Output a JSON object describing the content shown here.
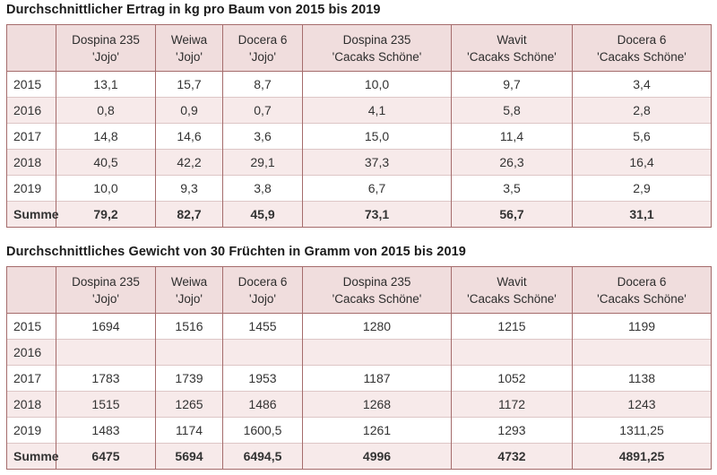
{
  "colors": {
    "header_bg": "#f0dddd",
    "stripe_bg": "#f7eaea",
    "border_strong": "#a56c6c",
    "border_light": "#ddc6c6",
    "title_text": "#1b1b1b",
    "cell_text": "#333333"
  },
  "tables": [
    {
      "title": "Durchschnittlicher Ertrag in kg pro Baum von 2015 bis 2019",
      "columns": [
        [
          "",
          ""
        ],
        [
          "Dospina 235",
          "'Jojo'"
        ],
        [
          "Weiwa",
          "'Jojo'"
        ],
        [
          "Docera 6",
          "'Jojo'"
        ],
        [
          "Dospina 235",
          "'Cacaks Schöne'"
        ],
        [
          "Wavit",
          "'Cacaks Schöne'"
        ],
        [
          "Docera 6",
          "'Cacaks Schöne'"
        ]
      ],
      "rows": [
        {
          "label": "2015",
          "values": [
            "13,1",
            "15,7",
            "8,7",
            "10,0",
            "9,7",
            "3,4"
          ],
          "total": false
        },
        {
          "label": "2016",
          "values": [
            "0,8",
            "0,9",
            "0,7",
            "4,1",
            "5,8",
            "2,8"
          ],
          "total": false
        },
        {
          "label": "2017",
          "values": [
            "14,8",
            "14,6",
            "3,6",
            "15,0",
            "11,4",
            "5,6"
          ],
          "total": false
        },
        {
          "label": "2018",
          "values": [
            "40,5",
            "42,2",
            "29,1",
            "37,3",
            "26,3",
            "16,4"
          ],
          "total": false
        },
        {
          "label": "2019",
          "values": [
            "10,0",
            "9,3",
            "3,8",
            "6,7",
            "3,5",
            "2,9"
          ],
          "total": false
        },
        {
          "label": "Summe",
          "values": [
            "79,2",
            "82,7",
            "45,9",
            "73,1",
            "56,7",
            "31,1"
          ],
          "total": true
        }
      ]
    },
    {
      "title": "Durchschnittliches Gewicht von 30 Früchten in Gramm von 2015 bis 2019",
      "columns": [
        [
          "",
          ""
        ],
        [
          "Dospina 235",
          "'Jojo'"
        ],
        [
          "Weiwa",
          "'Jojo'"
        ],
        [
          "Docera 6",
          "'Jojo'"
        ],
        [
          "Dospina 235",
          "'Cacaks Schöne'"
        ],
        [
          "Wavit",
          "'Cacaks Schöne'"
        ],
        [
          "Docera 6",
          "'Cacaks Schöne'"
        ]
      ],
      "rows": [
        {
          "label": "2015",
          "values": [
            "1694",
            "1516",
            "1455",
            "1280",
            "1215",
            "1199"
          ],
          "total": false
        },
        {
          "label": "2016",
          "values": [
            "",
            "",
            "",
            "",
            "",
            ""
          ],
          "total": false
        },
        {
          "label": "2017",
          "values": [
            "1783",
            "1739",
            "1953",
            "1187",
            "1052",
            "1138"
          ],
          "total": false
        },
        {
          "label": "2018",
          "values": [
            "1515",
            "1265",
            "1486",
            "1268",
            "1172",
            "1243"
          ],
          "total": false
        },
        {
          "label": "2019",
          "values": [
            "1483",
            "1174",
            "1600,5",
            "1261",
            "1293",
            "1311,25"
          ],
          "total": false
        },
        {
          "label": "Summe",
          "values": [
            "6475",
            "5694",
            "6494,5",
            "4996",
            "4732",
            "4891,25"
          ],
          "total": true
        }
      ]
    }
  ]
}
